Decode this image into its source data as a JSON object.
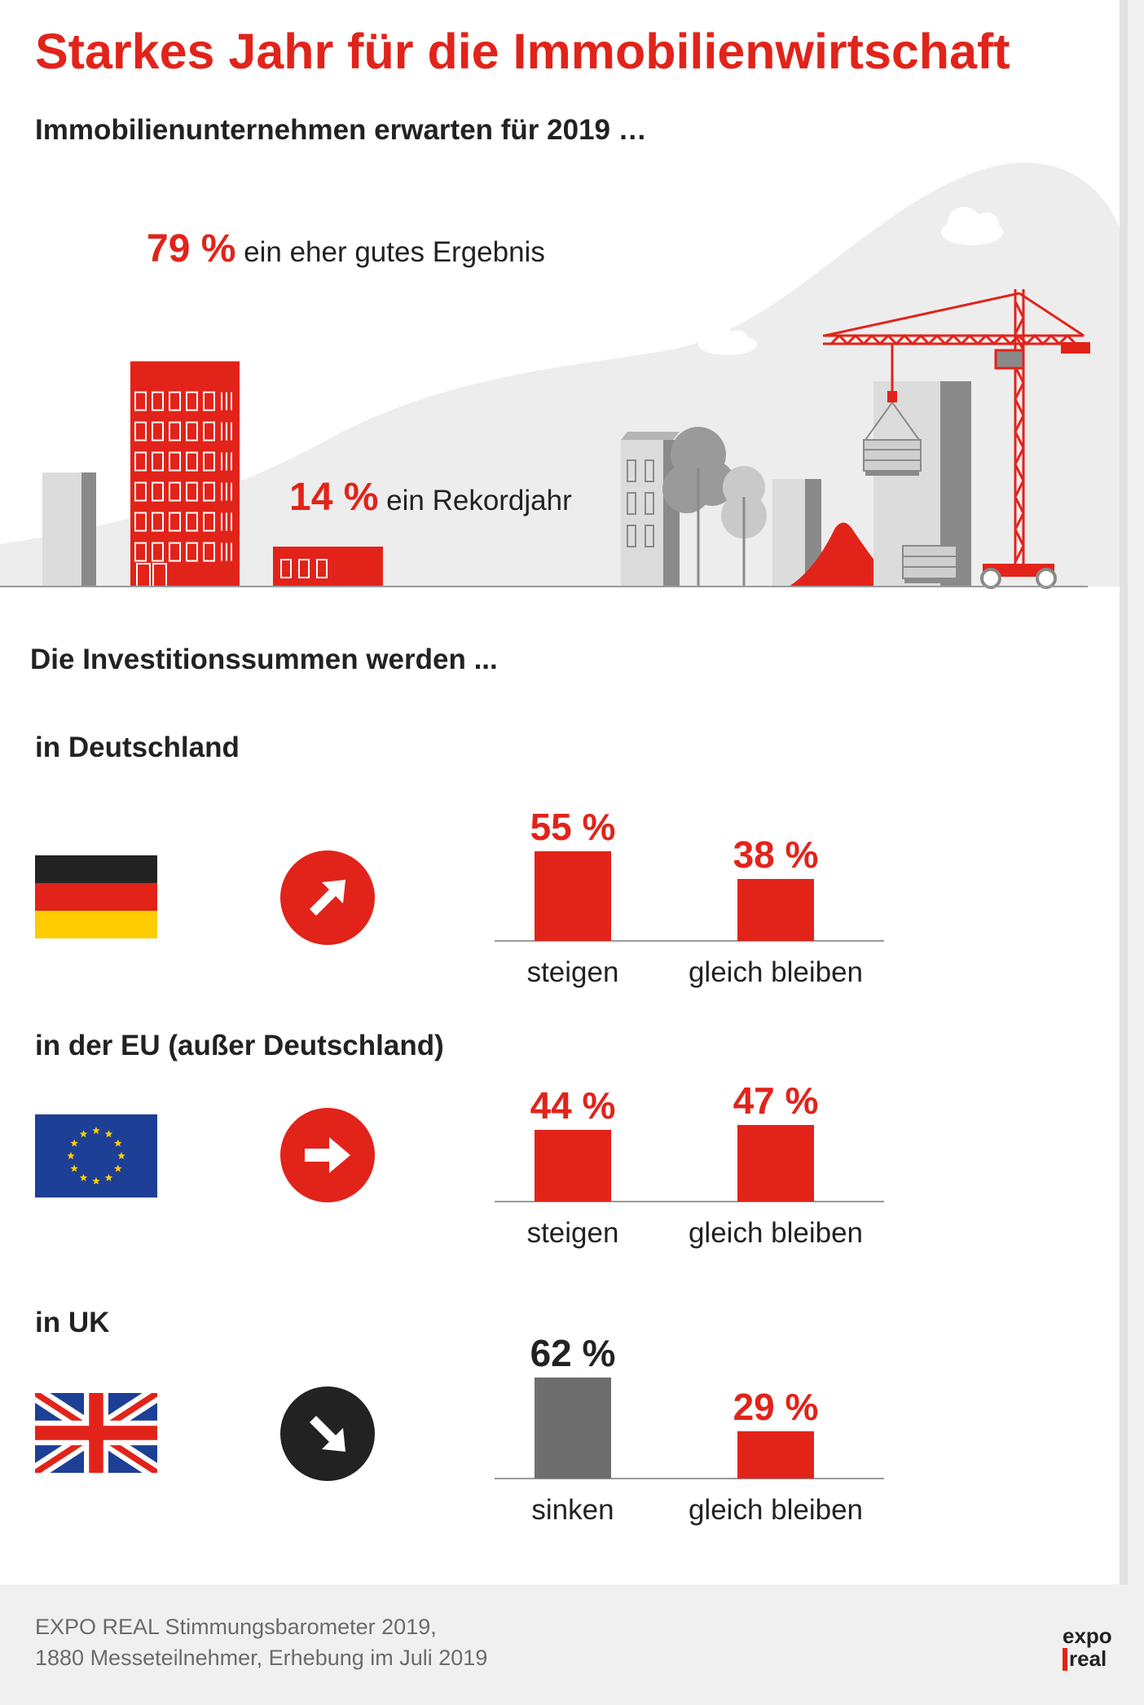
{
  "header": {
    "title": "Starkes Jahr für die Immobilienwirtschaft",
    "subtitle": "Immobilienunternehmen erwarten für 2019 …"
  },
  "expectations": [
    {
      "pct": "79 %",
      "label": "ein eher gutes Ergebnis"
    },
    {
      "pct": "14 %",
      "label": "ein Rekordjahr"
    }
  ],
  "investment": {
    "heading": "Die Investitionssummen werden ...",
    "regions": [
      {
        "label": "in Deutschland",
        "flag": "germany-flag",
        "arrow": "arrow-up-right-icon"
      },
      {
        "label": "in der EU (außer Deutschland)",
        "flag": "eu-flag",
        "arrow": "arrow-right-icon"
      },
      {
        "label": "in UK",
        "flag": "uk-flag",
        "arrow": "arrow-down-right-icon"
      }
    ]
  },
  "chart_data": [
    {
      "type": "bar",
      "region": "in Deutschland",
      "categories": [
        "steigen",
        "gleich bleiben"
      ],
      "values": [
        55,
        38
      ],
      "value_labels": [
        "55 %",
        "38 %"
      ],
      "colors": [
        "#e2231a",
        "#e2231a"
      ],
      "label_colors": [
        "#e2231a",
        "#e2231a"
      ],
      "ylim": [
        0,
        100
      ]
    },
    {
      "type": "bar",
      "region": "in der EU (außer Deutschland)",
      "categories": [
        "steigen",
        "gleich bleiben"
      ],
      "values": [
        44,
        47
      ],
      "value_labels": [
        "44 %",
        "47 %"
      ],
      "colors": [
        "#e2231a",
        "#e2231a"
      ],
      "label_colors": [
        "#e2231a",
        "#e2231a"
      ],
      "ylim": [
        0,
        100
      ]
    },
    {
      "type": "bar",
      "region": "in UK",
      "categories": [
        "sinken",
        "gleich bleiben"
      ],
      "values": [
        62,
        29
      ],
      "value_labels": [
        "62 %",
        "29 %"
      ],
      "colors": [
        "#6e6e6e",
        "#e2231a"
      ],
      "label_colors": [
        "#222222",
        "#e2231a"
      ],
      "ylim": [
        0,
        100
      ]
    },
    {
      "type": "bar",
      "region": "expectations 2019",
      "categories": [
        "ein eher gutes Ergebnis",
        "ein Rekordjahr"
      ],
      "values": [
        79,
        14
      ],
      "colors": [
        "#e2231a",
        "#e2231a"
      ],
      "ylim": [
        0,
        100
      ]
    }
  ],
  "footer": {
    "source_line1": "EXPO REAL Stimmungsbarometer 2019,",
    "source_line2": "1880 Messeteilnehmer, Erhebung im Juli 2019",
    "logo_line1": "expo",
    "logo_line2": "real"
  },
  "colors": {
    "accent": "#e2231a",
    "dark": "#222222",
    "grey_bar": "#6e6e6e",
    "hill": "#ededed"
  }
}
